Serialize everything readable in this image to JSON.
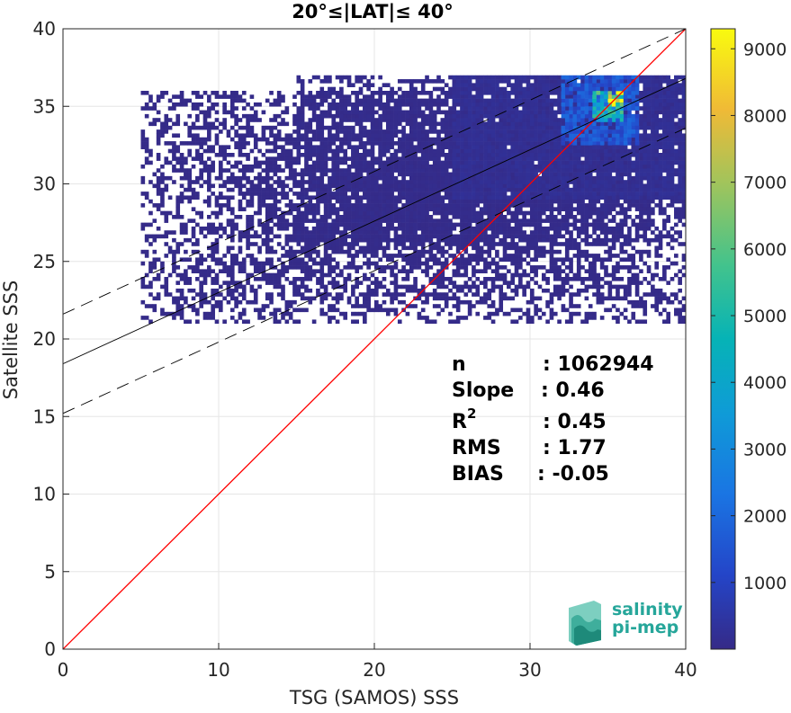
{
  "chart_data": {
    "type": "heatmap",
    "title": "20°≤|LAT|≤ 40°",
    "xlabel": "TSG (SAMOS) SSS",
    "ylabel": "Satellite SSS",
    "xlim": [
      0,
      40
    ],
    "ylim": [
      0,
      40
    ],
    "xticks": [
      "0",
      "10",
      "20",
      "30",
      "40"
    ],
    "yticks": [
      "0",
      "5",
      "10",
      "15",
      "20",
      "25",
      "30",
      "35",
      "40"
    ],
    "grid": true,
    "colormap": "parula",
    "colorbar": {
      "range": [
        0,
        9300
      ],
      "ticks": [
        "1000",
        "2000",
        "3000",
        "4000",
        "5000",
        "6000",
        "7000",
        "8000",
        "9000"
      ]
    },
    "identity_line": {
      "from": [
        0,
        0
      ],
      "to": [
        40,
        40
      ],
      "color": "#ff0000"
    },
    "regression_line": {
      "slope": 0.46,
      "intercept": 18.4,
      "color": "#000000"
    },
    "regression_bounds": [
      {
        "slope": 0.46,
        "intercept": 21.6
      },
      {
        "slope": 0.46,
        "intercept": 15.2
      }
    ],
    "density_regions": [
      {
        "x": [
          5,
          40
        ],
        "y": [
          21,
          36
        ],
        "level": 30
      },
      {
        "x": [
          15,
          40
        ],
        "y": [
          26,
          37
        ],
        "level": 80
      },
      {
        "x": [
          25,
          40
        ],
        "y": [
          29,
          37
        ],
        "level": 200
      },
      {
        "x": [
          32,
          37
        ],
        "y": [
          32.5,
          37
        ],
        "level": 1500
      },
      {
        "x": [
          34,
          36
        ],
        "y": [
          34,
          36
        ],
        "level": 4500
      },
      {
        "x": [
          35,
          36
        ],
        "y": [
          35,
          36
        ],
        "level": 9200
      }
    ],
    "stats": {
      "n": {
        "label": "n",
        "value": ": 1062944"
      },
      "slope": {
        "label": "Slope",
        "value": ": 0.46"
      },
      "r2": {
        "label": "R",
        "sup": "2",
        "value": ": 0.45"
      },
      "rms": {
        "label": "RMS",
        "value": ": 1.77"
      },
      "bias": {
        "label": "BIAS",
        "value": ": -0.05"
      }
    }
  },
  "logo": {
    "line1": "salinity",
    "line2": "pi-mep"
  },
  "colors": {
    "identity": "#ff0000",
    "regression": "#000000",
    "logo_text": "#26a69a",
    "grid": "#e6e6e6",
    "axis": "#262626"
  }
}
